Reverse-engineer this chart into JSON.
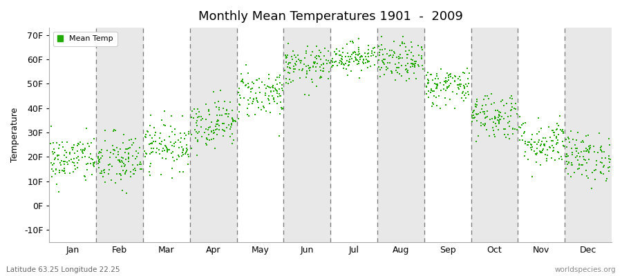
{
  "title": "Monthly Mean Temperatures 1901  -  2009",
  "ylabel": "Temperature",
  "xlabel_labels": [
    "Jan",
    "Feb",
    "Mar",
    "Apr",
    "May",
    "Jun",
    "Jul",
    "Aug",
    "Sep",
    "Oct",
    "Nov",
    "Dec"
  ],
  "ytick_labels": [
    "-10F",
    "0F",
    "10F",
    "20F",
    "30F",
    "40F",
    "50F",
    "60F",
    "70F"
  ],
  "ytick_values": [
    -10,
    0,
    10,
    20,
    30,
    40,
    50,
    60,
    70
  ],
  "ylim": [
    -15,
    73
  ],
  "xlim": [
    0,
    12
  ],
  "legend_label": "Mean Temp",
  "dot_color": "#22aa00",
  "dot_size": 4,
  "bg_color": "#ffffff",
  "band_color": "#e8e8e8",
  "subtitle": "Latitude 63.25 Longitude 22.25",
  "watermark": "worldspecies.org",
  "monthly_means_F": [
    19,
    18,
    25,
    34,
    46,
    57,
    61,
    59,
    49,
    37,
    26,
    20
  ],
  "monthly_stds_F": [
    5,
    6,
    5,
    5,
    5,
    4,
    3,
    4,
    4,
    5,
    5,
    5
  ],
  "n_years": 109,
  "seed": 42
}
